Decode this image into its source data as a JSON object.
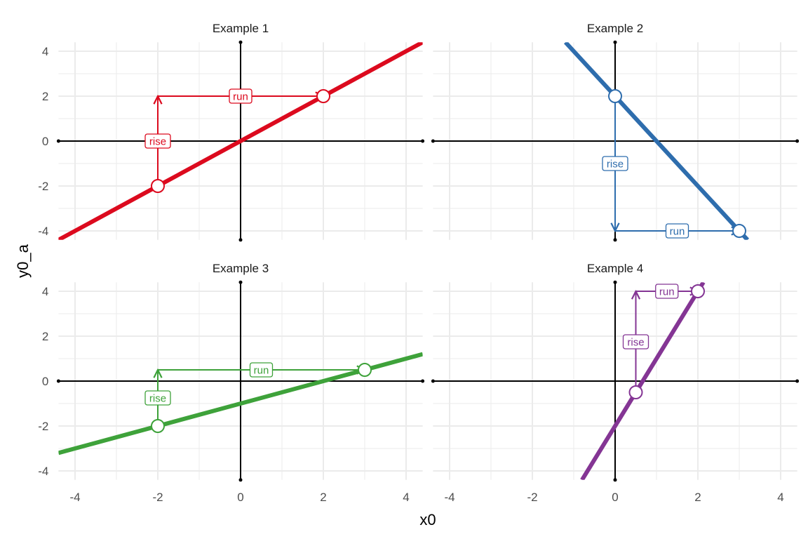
{
  "chart_data": {
    "type": "line",
    "title": "",
    "xlabel": "x0",
    "ylabel": "y0_a",
    "xlim": [
      -4.4,
      4.4
    ],
    "ylim": [
      -4.4,
      4.4
    ],
    "xticks": [
      -4,
      -2,
      0,
      2,
      4
    ],
    "yticks": [
      -4,
      -2,
      0,
      2,
      4
    ],
    "grid": true,
    "panels": [
      {
        "title": "Example 1",
        "color": "#DC0A1E",
        "slope": 1,
        "intercept": 0,
        "points": [
          [
            -2,
            -2
          ],
          [
            2,
            2
          ]
        ],
        "rise": {
          "from": [
            -2,
            -2
          ],
          "to": [
            -2,
            2
          ],
          "label": "rise"
        },
        "run": {
          "from": [
            -2,
            2
          ],
          "to": [
            2,
            2
          ],
          "label": "run"
        }
      },
      {
        "title": "Example 2",
        "color": "#2E6DAD",
        "slope": -2,
        "intercept": 2,
        "points": [
          [
            0,
            2
          ],
          [
            3,
            -4
          ]
        ],
        "rise": {
          "from": [
            0,
            2
          ],
          "to": [
            0,
            -4
          ],
          "label": "rise"
        },
        "run": {
          "from": [
            0,
            -4
          ],
          "to": [
            3,
            -4
          ],
          "label": "run"
        }
      },
      {
        "title": "Example 3",
        "color": "#3EA23A",
        "slope": 0.5,
        "intercept": -1,
        "points": [
          [
            -2,
            -2
          ],
          [
            3,
            0.5
          ]
        ],
        "rise": {
          "from": [
            -2,
            -2
          ],
          "to": [
            -2,
            0.5
          ],
          "label": "rise"
        },
        "run": {
          "from": [
            -2,
            0.5
          ],
          "to": [
            3,
            0.5
          ],
          "label": "run"
        }
      },
      {
        "title": "Example 4",
        "color": "#843594",
        "slope": 3,
        "intercept": -2,
        "points": [
          [
            0.5,
            -0.5
          ],
          [
            2,
            4
          ]
        ],
        "rise": {
          "from": [
            0.5,
            -0.5
          ],
          "to": [
            0.5,
            4
          ],
          "label": "rise"
        },
        "run": {
          "from": [
            0.5,
            4
          ],
          "to": [
            2,
            4
          ],
          "label": "run"
        }
      }
    ]
  }
}
